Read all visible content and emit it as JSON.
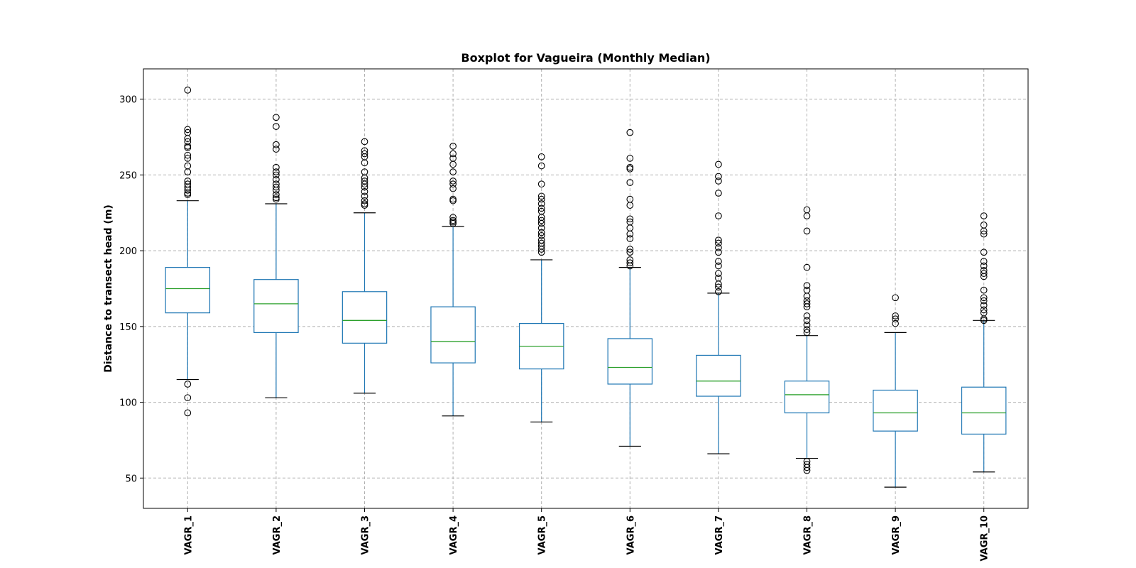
{
  "chart_data": {
    "type": "boxplot",
    "title": "Boxplot for Vagueira (Monthly Median)",
    "xlabel": "",
    "ylabel": "Distance to transect head (m)",
    "ylim": [
      30,
      320
    ],
    "yticks": [
      50,
      100,
      150,
      200,
      250,
      300
    ],
    "grid": true,
    "colors": {
      "box": "#1f77b4",
      "median": "#2ca02c",
      "whisker": "#1f77b4",
      "cap": "#000000",
      "flier": "#000000",
      "grid": "#b0b0b0"
    },
    "categories": [
      "VAGR_1",
      "VAGR_2",
      "VAGR_3",
      "VAGR_4",
      "VAGR_5",
      "VAGR_6",
      "VAGR_7",
      "VAGR_8",
      "VAGR_9",
      "VAGR_10"
    ],
    "boxes": [
      {
        "name": "VAGR_1",
        "whislo": 115,
        "q1": 159,
        "med": 175,
        "q3": 189,
        "whishi": 233,
        "fliers": [
          306,
          280,
          278,
          274,
          272,
          269,
          268,
          263,
          261,
          256,
          252,
          246,
          244,
          242,
          240,
          238,
          237,
          112,
          103,
          93
        ]
      },
      {
        "name": "VAGR_2",
        "whislo": 103,
        "q1": 146,
        "med": 165,
        "q3": 181,
        "whishi": 231,
        "fliers": [
          288,
          282,
          270,
          267,
          255,
          252,
          250,
          247,
          244,
          242,
          240,
          237,
          235,
          234
        ]
      },
      {
        "name": "VAGR_3",
        "whislo": 106,
        "q1": 139,
        "med": 154,
        "q3": 173,
        "whishi": 225,
        "fliers": [
          272,
          266,
          264,
          262,
          258,
          252,
          248,
          246,
          244,
          242,
          239,
          236,
          233,
          231,
          230
        ]
      },
      {
        "name": "VAGR_4",
        "whislo": 91,
        "q1": 126,
        "med": 140,
        "q3": 163,
        "whishi": 216,
        "fliers": [
          269,
          264,
          261,
          257,
          252,
          246,
          244,
          241,
          234,
          233,
          222,
          220,
          219,
          218
        ]
      },
      {
        "name": "VAGR_5",
        "whislo": 87,
        "q1": 122,
        "med": 137,
        "q3": 152,
        "whishi": 194,
        "fliers": [
          262,
          256,
          244,
          236,
          234,
          231,
          228,
          226,
          222,
          220,
          218,
          215,
          212,
          210,
          207,
          205,
          203,
          201,
          199
        ]
      },
      {
        "name": "VAGR_6",
        "whislo": 71,
        "q1": 112,
        "med": 123,
        "q3": 142,
        "whishi": 189,
        "fliers": [
          278,
          261,
          255,
          254,
          245,
          234,
          230,
          221,
          219,
          215,
          211,
          208,
          201,
          199,
          194,
          192,
          190
        ]
      },
      {
        "name": "VAGR_7",
        "whislo": 66,
        "q1": 104,
        "med": 114,
        "q3": 131,
        "whishi": 172,
        "fliers": [
          257,
          249,
          246,
          238,
          223,
          207,
          205,
          202,
          199,
          193,
          190,
          185,
          182,
          178,
          176,
          173
        ]
      },
      {
        "name": "VAGR_8",
        "whislo": 63,
        "q1": 93,
        "med": 105,
        "q3": 114,
        "whishi": 144,
        "fliers": [
          227,
          223,
          213,
          189,
          177,
          174,
          170,
          167,
          165,
          163,
          157,
          154,
          151,
          148,
          146,
          61,
          59,
          57,
          55
        ]
      },
      {
        "name": "VAGR_9",
        "whislo": 44,
        "q1": 81,
        "med": 93,
        "q3": 108,
        "whishi": 146,
        "fliers": [
          169,
          157,
          155,
          152
        ]
      },
      {
        "name": "VAGR_10",
        "whislo": 54,
        "q1": 79,
        "med": 93,
        "q3": 110,
        "whishi": 154,
        "fliers": [
          223,
          217,
          213,
          211,
          199,
          193,
          190,
          187,
          185,
          183,
          174,
          169,
          167,
          164,
          161,
          159,
          155,
          154
        ]
      }
    ]
  }
}
